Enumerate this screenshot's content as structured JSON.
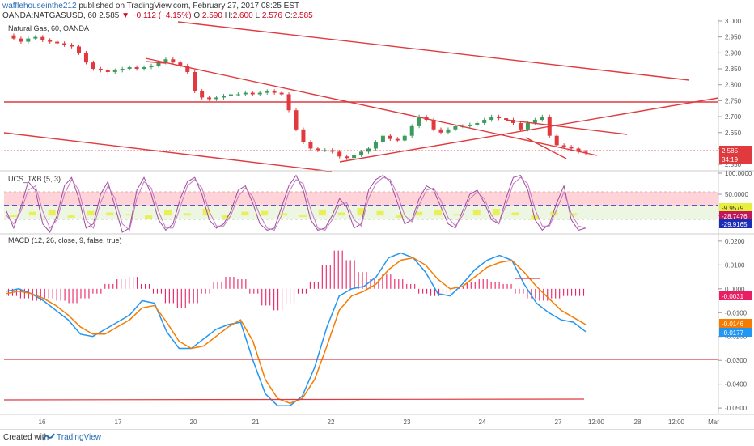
{
  "header": {
    "author": "wafflehouseinthe212",
    "published": " published on TradingView.com, February 27, 2017 08:25 EST",
    "symbol": "OANDA:NATGASUSD, 60",
    "price": "2.585",
    "arrow": "▼",
    "change": "−0.112 (−4.15%)",
    "o_label": "O:",
    "o_value": "2.590",
    "h_label": "H:",
    "h_value": "2.600",
    "l_label": "L:",
    "l_value": "2.576",
    "c_label": "C:",
    "c_value": "2.585"
  },
  "panes": {
    "price": {
      "title": "Natural Gas, 60, OANDA",
      "ticks": [
        "3.000",
        "2.950",
        "2.900",
        "2.850",
        "2.800",
        "2.750",
        "2.700",
        "2.650",
        "2.600",
        "2.550"
      ],
      "current_price": "2.585",
      "countdown": "34:19"
    },
    "ucs": {
      "title": "UCS_T&B (5, 3)",
      "ticks": [
        "100.0000",
        "50.0000",
        "0.0000"
      ],
      "badges": [
        "-9.9579",
        "-28.7476",
        "-29.9165"
      ]
    },
    "macd": {
      "title": "MACD (12, 26, close, 9, false, true)",
      "ticks": [
        "0.0200",
        "0.0100",
        "0.0000",
        "-0.0100",
        "-0.0200",
        "-0.0300",
        "-0.0400",
        "-0.0500"
      ],
      "badges": [
        "-0.0031",
        "-0.0146",
        "-0.0177"
      ]
    }
  },
  "x_labels": [
    "16",
    "17",
    "20",
    "21",
    "22",
    "23",
    "24",
    "27",
    "12:00",
    "28",
    "12:00",
    "Mar"
  ],
  "footer": {
    "created": "Created with",
    "brand": "TradingView"
  },
  "colors": {
    "up": "#3d9b5f",
    "down": "#e0393e",
    "trendline": "#e0393e",
    "macd": "#2196f3",
    "signal": "#f57c00",
    "hist": "#e91e63",
    "ucs_zone": "#ffc0c8",
    "ucs_line_a": "#9c4d9c",
    "ucs_line_b": "#c47ac4"
  },
  "chart_data": [
    {
      "type": "line",
      "title": "Natural Gas, 60, OANDA",
      "ylim": [
        2.53,
        3.005
      ],
      "x_labels": [
        "16",
        "17",
        "20",
        "21",
        "22",
        "23",
        "24",
        "27",
        "12:00",
        "28",
        "12:00",
        "Mar"
      ],
      "series": [
        {
          "values": [
            2.955,
            2.945,
            2.935,
            2.945,
            2.95,
            2.94,
            2.935,
            2.93,
            2.925,
            2.92,
            2.9,
            2.87,
            2.85,
            2.845,
            2.84,
            2.845,
            2.85,
            2.855,
            2.85,
            2.855,
            2.86,
            2.87,
            2.88,
            2.87,
            2.86,
            2.84,
            2.78,
            2.76,
            2.755,
            2.76,
            2.765,
            2.77,
            2.77,
            2.775,
            2.77,
            2.775,
            2.78,
            2.775,
            2.77,
            2.72,
            2.66,
            2.62,
            2.6,
            2.595,
            2.595,
            2.59,
            2.575,
            2.57,
            2.58,
            2.59,
            2.6,
            2.62,
            2.64,
            2.63,
            2.625,
            2.64,
            2.67,
            2.7,
            2.69,
            2.66,
            2.65,
            2.66,
            2.67,
            2.67,
            2.675,
            2.68,
            2.69,
            2.7,
            2.695,
            2.69,
            2.68,
            2.66,
            2.68,
            2.69,
            2.7,
            2.64,
            2.61,
            2.605,
            2.6,
            2.59,
            2.585
          ]
        }
      ]
    },
    {
      "type": "line",
      "title": "UCS_T&B (5, 3)",
      "ylim": [
        -40,
        100
      ],
      "series": [
        {
          "values": [
            10,
            -30,
            20,
            80,
            60,
            -20,
            -40,
            0,
            70,
            90,
            40,
            -30,
            -20,
            50,
            80,
            20,
            -40,
            -30,
            60,
            90,
            50,
            -10,
            -35,
            -20,
            40,
            80,
            90,
            50,
            -10,
            -30,
            -20,
            10,
            60,
            70,
            30,
            -20,
            -35,
            -30,
            20,
            70,
            95,
            60,
            -10,
            -35,
            -30,
            0,
            40,
            20,
            -30,
            -20,
            60,
            85,
            95,
            80,
            30,
            -20,
            -10,
            40,
            70,
            60,
            20,
            -20,
            -30,
            10,
            50,
            60,
            30,
            -10,
            -20,
            40,
            90,
            95,
            60,
            -10,
            -35,
            -20,
            30,
            70,
            -10,
            -35,
            -30
          ]
        },
        {
          "values": [
            0,
            -20,
            10,
            60,
            70,
            10,
            -30,
            -10,
            50,
            85,
            60,
            -10,
            -30,
            30,
            70,
            40,
            -20,
            -35,
            40,
            80,
            65,
            10,
            -30,
            -30,
            20,
            70,
            85,
            65,
            10,
            -25,
            -25,
            0,
            45,
            65,
            45,
            0,
            -30,
            -35,
            0,
            55,
            85,
            75,
            15,
            -30,
            -35,
            -10,
            25,
            30,
            -10,
            -25,
            40,
            75,
            90,
            85,
            50,
            0,
            -15,
            25,
            60,
            65,
            35,
            -5,
            -25,
            0,
            40,
            55,
            40,
            0,
            -20,
            25,
            75,
            90,
            75,
            15,
            -25,
            -25,
            15,
            55,
            5,
            -25,
            -30
          ]
        }
      ]
    },
    {
      "type": "line",
      "title": "MACD (12, 26, close, 9, false, true)",
      "ylim": [
        -0.052,
        0.022
      ],
      "series": [
        {
          "name": "MACD",
          "values": [
            -0.001,
            0.0,
            -0.002,
            -0.005,
            -0.009,
            -0.013,
            -0.019,
            -0.02,
            -0.017,
            -0.014,
            -0.011,
            -0.005,
            -0.006,
            -0.018,
            -0.025,
            -0.025,
            -0.021,
            -0.017,
            -0.015,
            -0.014,
            -0.03,
            -0.044,
            -0.049,
            -0.049,
            -0.045,
            -0.033,
            -0.016,
            -0.003,
            0.0,
            0.001,
            0.005,
            0.013,
            0.015,
            0.013,
            0.007,
            -0.002,
            -0.003,
            0.002,
            0.008,
            0.012,
            0.014,
            0.012,
            0.002,
            -0.006,
            -0.01,
            -0.013,
            -0.014,
            -0.018
          ]
        },
        {
          "name": "Signal",
          "values": [
            -0.002,
            -0.001,
            -0.002,
            -0.004,
            -0.007,
            -0.011,
            -0.016,
            -0.019,
            -0.019,
            -0.016,
            -0.013,
            -0.008,
            -0.007,
            -0.014,
            -0.022,
            -0.025,
            -0.024,
            -0.02,
            -0.016,
            -0.013,
            -0.022,
            -0.038,
            -0.046,
            -0.048,
            -0.046,
            -0.038,
            -0.024,
            -0.009,
            -0.003,
            -0.001,
            0.002,
            0.008,
            0.012,
            0.013,
            0.01,
            0.004,
            0.0,
            0.001,
            0.005,
            0.009,
            0.011,
            0.012,
            0.007,
            0.001,
            -0.004,
            -0.009,
            -0.012,
            -0.015
          ]
        },
        {
          "name": "Histogram",
          "values": [
            -0.003,
            -0.004,
            -0.005,
            -0.004,
            -0.005,
            -0.006,
            -0.004,
            -0.002,
            0.002,
            0.004,
            0.005,
            0.002,
            -0.002,
            -0.006,
            -0.008,
            -0.006,
            -0.002,
            0.003,
            0.005,
            0.004,
            -0.002,
            -0.007,
            -0.009,
            -0.006,
            -0.002,
            0.003,
            0.01,
            0.016,
            0.012,
            0.007,
            0.004,
            0.006,
            0.004,
            0.002,
            -0.002,
            -0.003,
            -0.002,
            0.001,
            0.003,
            0.004,
            0.003,
            0.002,
            -0.002,
            -0.004,
            -0.005,
            -0.004,
            -0.003,
            -0.003
          ]
        }
      ]
    }
  ]
}
